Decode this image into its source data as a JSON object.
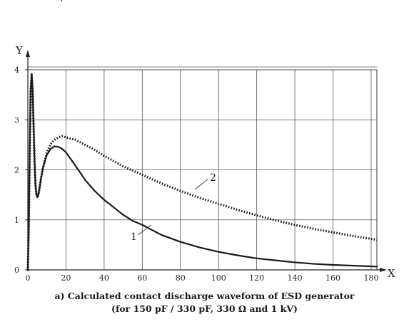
{
  "chart_data": {
    "type": "line",
    "xlabel": "X",
    "ylabel": "Y",
    "xlim": [
      0,
      183
    ],
    "ylim": [
      0,
      4
    ],
    "x_ticks": [
      0,
      20,
      40,
      60,
      80,
      100,
      120,
      140,
      160,
      180
    ],
    "y_ticks": [
      0,
      1,
      2,
      3,
      4
    ],
    "grid": true,
    "series": [
      {
        "name": "1",
        "style": "solid",
        "color": "#1a1a1a",
        "x": [
          0,
          0.5,
          1,
          1.5,
          2,
          2.5,
          3,
          3.5,
          4,
          4.5,
          5,
          5.5,
          6,
          7,
          8,
          10,
          12,
          14,
          16,
          18,
          20,
          25,
          30,
          35,
          40,
          45,
          50,
          55,
          60,
          65,
          70,
          80,
          90,
          100,
          110,
          120,
          130,
          140,
          150,
          160,
          170,
          180,
          183
        ],
        "y": [
          0,
          0.9,
          2.4,
          3.6,
          3.92,
          3.6,
          2.9,
          2.2,
          1.7,
          1.5,
          1.45,
          1.5,
          1.6,
          1.85,
          2.05,
          2.3,
          2.42,
          2.47,
          2.46,
          2.42,
          2.35,
          2.08,
          1.8,
          1.58,
          1.4,
          1.25,
          1.1,
          0.98,
          0.9,
          0.8,
          0.7,
          0.56,
          0.45,
          0.36,
          0.29,
          0.23,
          0.19,
          0.15,
          0.12,
          0.1,
          0.085,
          0.07,
          0.065
        ]
      },
      {
        "name": "2",
        "style": "dotted",
        "color": "#1a1a1a",
        "x": [
          0,
          0.5,
          1,
          1.5,
          2,
          2.5,
          3,
          3.5,
          4,
          4.5,
          5,
          5.5,
          6,
          7,
          8,
          10,
          12,
          14,
          16,
          18,
          20,
          25,
          30,
          35,
          40,
          50,
          60,
          70,
          80,
          90,
          100,
          110,
          120,
          130,
          140,
          150,
          160,
          170,
          180,
          183
        ],
        "y": [
          0,
          0.9,
          2.4,
          3.6,
          3.92,
          3.6,
          2.9,
          2.2,
          1.7,
          1.5,
          1.45,
          1.5,
          1.6,
          1.85,
          2.05,
          2.35,
          2.52,
          2.6,
          2.65,
          2.67,
          2.65,
          2.6,
          2.5,
          2.4,
          2.28,
          2.07,
          1.9,
          1.73,
          1.58,
          1.44,
          1.32,
          1.2,
          1.09,
          0.99,
          0.9,
          0.82,
          0.75,
          0.68,
          0.62,
          0.6
        ]
      }
    ],
    "annotations": [
      {
        "text": "1",
        "series": "1"
      },
      {
        "text": "2",
        "series": "2"
      }
    ],
    "caption_line1": "a) Calculated contact discharge waveform of ESD generator",
    "caption_line2": "(for 150 pF / 330 pF, 330 Ω and 1 kV)"
  }
}
